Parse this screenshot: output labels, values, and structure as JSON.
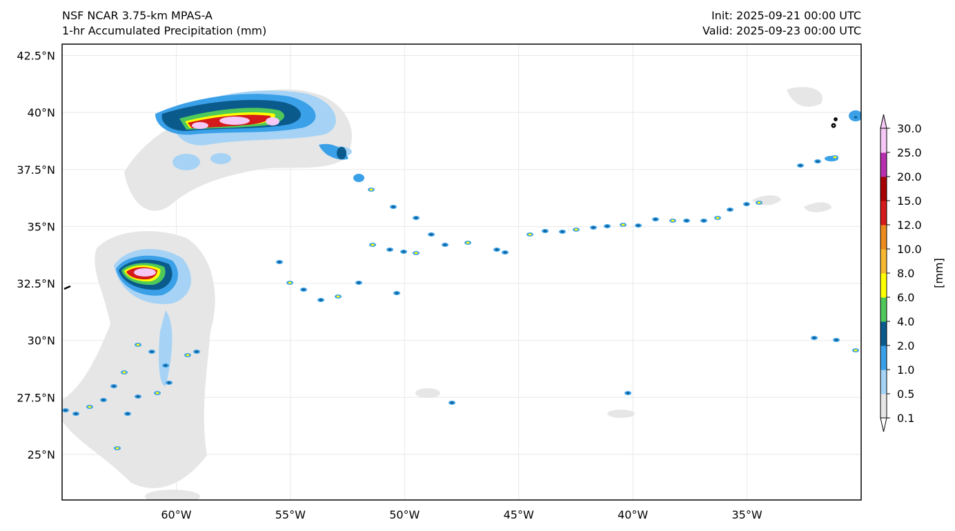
{
  "header": {
    "model": "NSF NCAR 3.75-km MPAS-A",
    "field": "1-hr Accumulated Precipitation (mm)",
    "init": "Init: 2025-09-21 00:00 UTC",
    "valid": "Valid: 2025-09-23 00:00 UTC"
  },
  "map": {
    "lon_ticks": [
      {
        "value": -60,
        "label": "60°W"
      },
      {
        "value": -55,
        "label": "55°W"
      },
      {
        "value": -50,
        "label": "50°W"
      },
      {
        "value": -45,
        "label": "45°W"
      },
      {
        "value": -40,
        "label": "40°W"
      },
      {
        "value": -35,
        "label": "35°W"
      }
    ],
    "lat_ticks": [
      {
        "value": 42.5,
        "label": "42.5°N"
      },
      {
        "value": 40,
        "label": "40°N"
      },
      {
        "value": 37.5,
        "label": "37.5°N"
      },
      {
        "value": 35,
        "label": "35°N"
      },
      {
        "value": 32.5,
        "label": "32.5°N"
      },
      {
        "value": 30,
        "label": "30°N"
      },
      {
        "value": 27.5,
        "label": "27.5°N"
      },
      {
        "value": 25,
        "label": "25°N"
      }
    ],
    "extent": {
      "lon_min": -65,
      "lon_max": -30,
      "lat_min": 23,
      "lat_max": 43
    }
  },
  "colorbar": {
    "unit_label": "[mm]",
    "levels": [
      "0.1",
      "0.5",
      "1.0",
      "2.0",
      "4.0",
      "6.0",
      "8.0",
      "10.0",
      "12.0",
      "15.0",
      "20.0",
      "25.0",
      "30.0"
    ],
    "colors": [
      "#e6e6e6",
      "#a6d3f5",
      "#3aa0e8",
      "#0b5a8c",
      "#4ec95a",
      "#ffff00",
      "#f5b830",
      "#eb8a1f",
      "#d41a1a",
      "#a80000",
      "#b62fae",
      "#f5c8f5"
    ]
  }
}
